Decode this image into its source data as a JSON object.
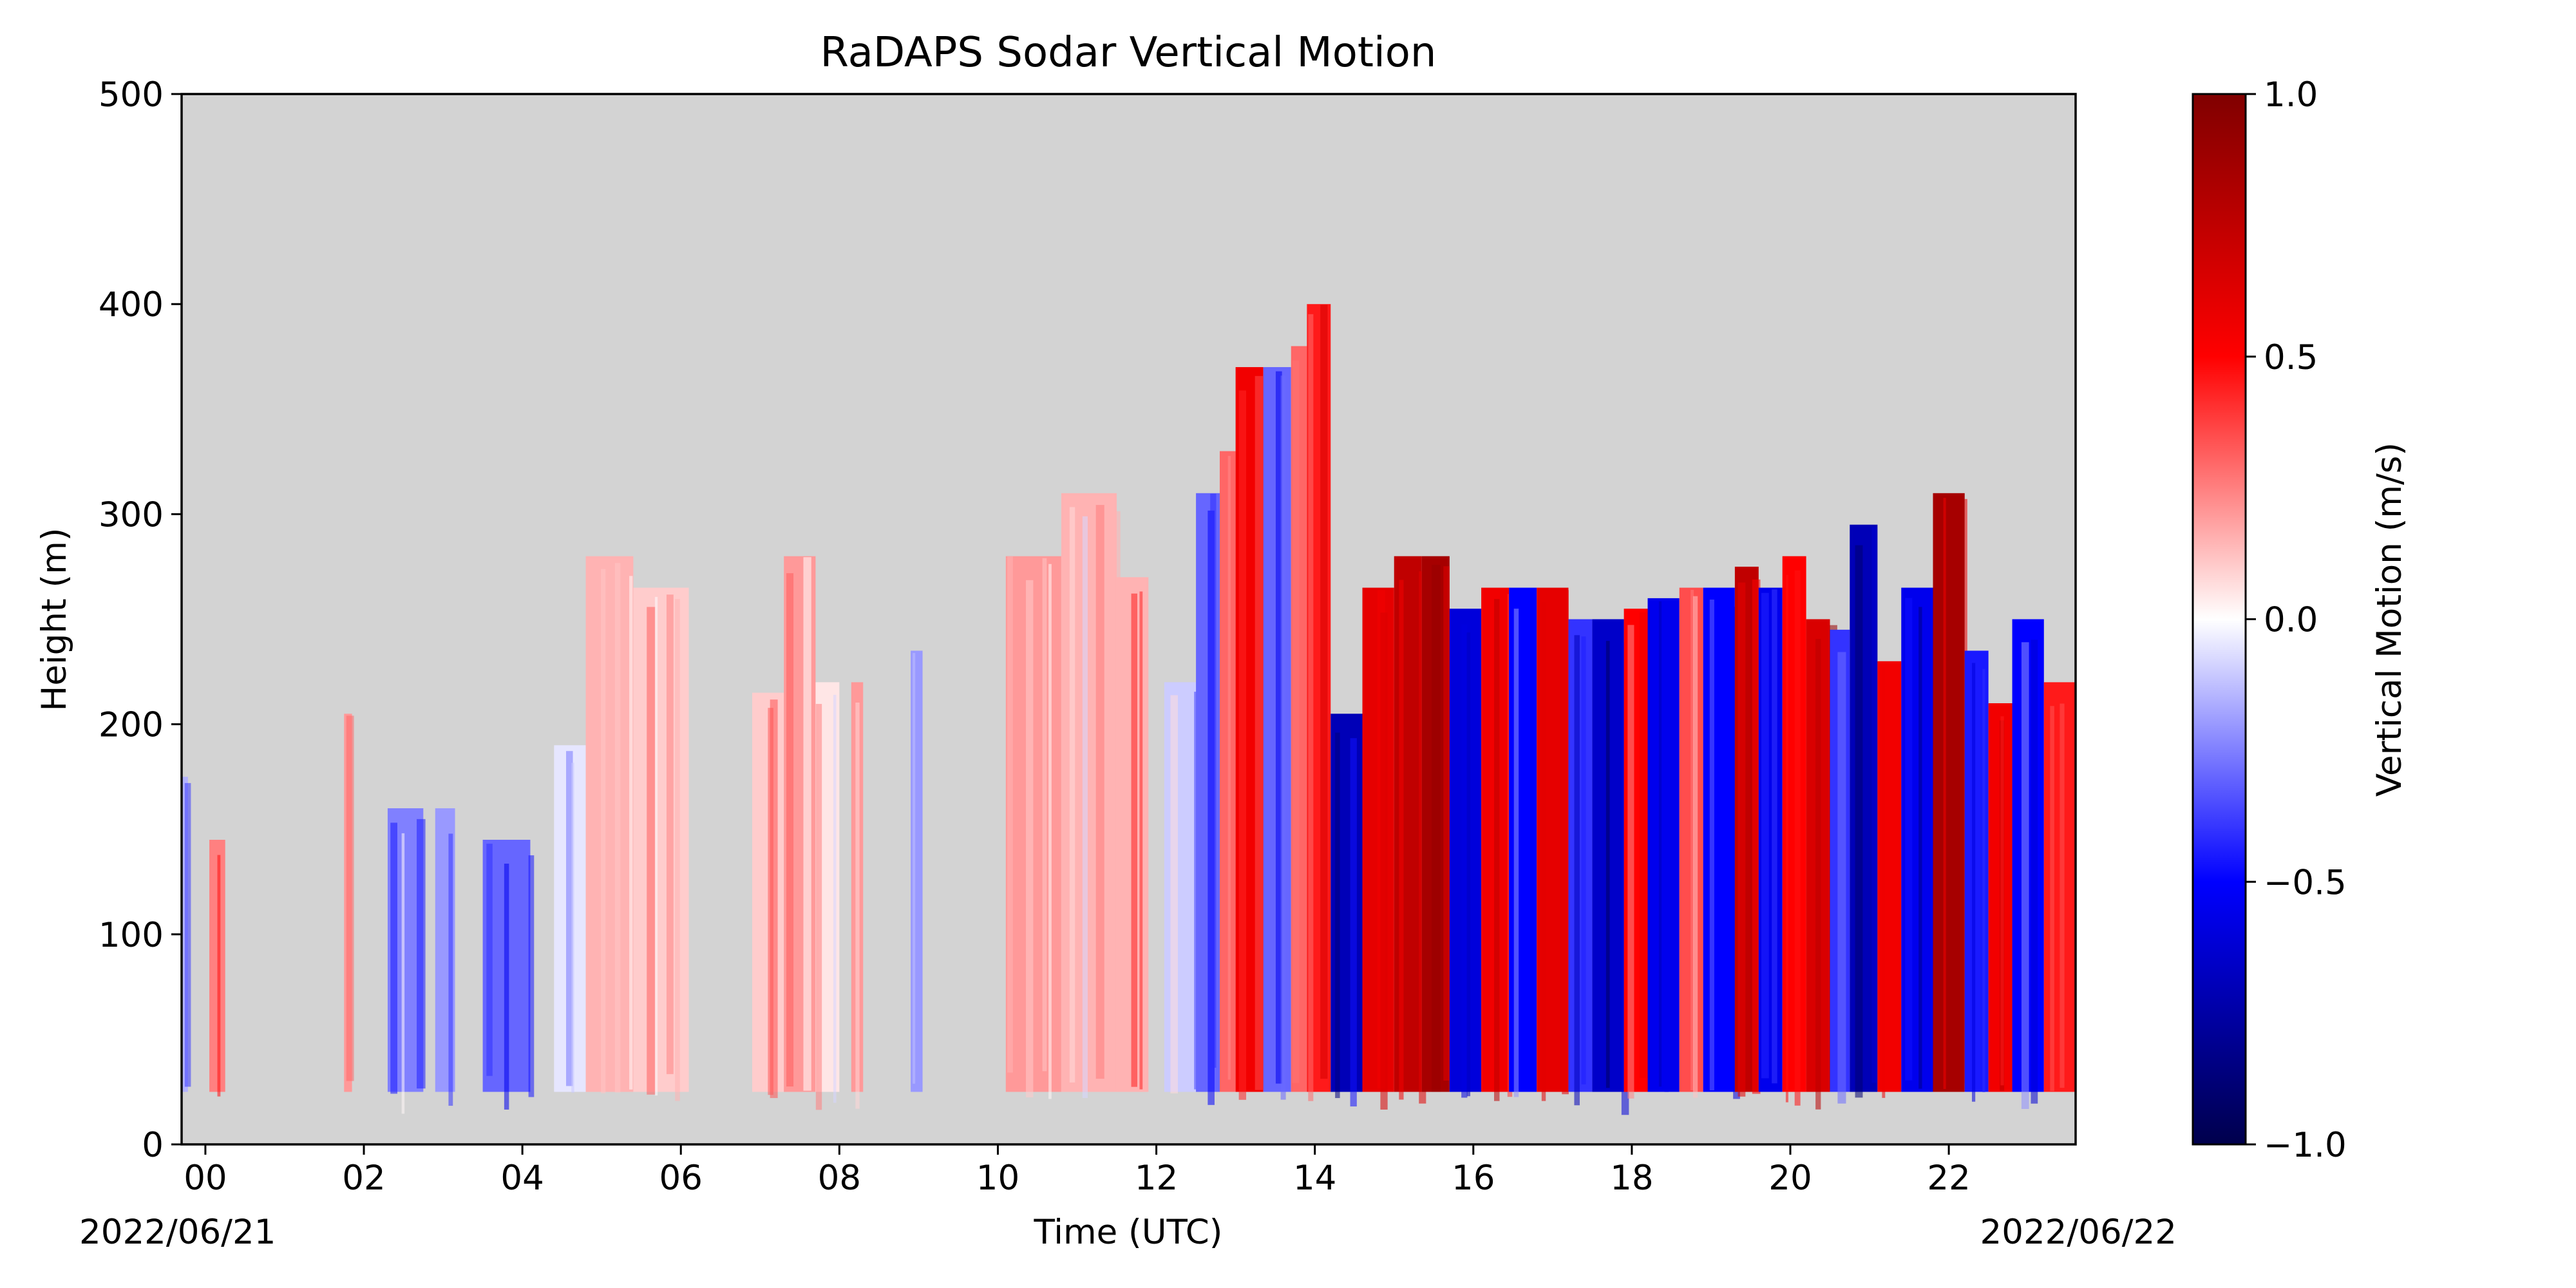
{
  "chart_data": {
    "type": "heatmap",
    "title": "RaDAPS Sodar Vertical Motion",
    "xlabel": "Time (UTC)",
    "ylabel": "Height (m)",
    "start_date_label": "2022/06/21",
    "end_date_label": "2022/06/22",
    "x_range_hours": [
      -0.3,
      23.6
    ],
    "x_ticks": [
      {
        "hour": 0,
        "label": "00"
      },
      {
        "hour": 2,
        "label": "02"
      },
      {
        "hour": 4,
        "label": "04"
      },
      {
        "hour": 6,
        "label": "06"
      },
      {
        "hour": 8,
        "label": "08"
      },
      {
        "hour": 10,
        "label": "10"
      },
      {
        "hour": 12,
        "label": "12"
      },
      {
        "hour": 14,
        "label": "14"
      },
      {
        "hour": 16,
        "label": "16"
      },
      {
        "hour": 18,
        "label": "18"
      },
      {
        "hour": 20,
        "label": "20"
      },
      {
        "hour": 22,
        "label": "22"
      }
    ],
    "ylim": [
      0,
      500
    ],
    "y_ticks": [
      0,
      100,
      200,
      300,
      400,
      500
    ],
    "background_color": "#d3d3d3",
    "colorbar": {
      "label": "Vertical Motion (m/s)",
      "colormap": "seismic",
      "range": [
        -1.0,
        1.0
      ],
      "ticks": [
        "1.0",
        "0.5",
        "0.0",
        "−0.5",
        "−1.0"
      ],
      "colors": {
        "min": "#00004c",
        "mid_low": "#0000ff",
        "zero": "#ffffff",
        "mid_high": "#ff0000",
        "max": "#800000"
      }
    },
    "data_floor_m": 25,
    "columns": [
      {
        "t0": -0.3,
        "t1": -0.22,
        "top": 175,
        "w": -0.15
      },
      {
        "t0": 0.05,
        "t1": 0.25,
        "top": 145,
        "w": 0.25
      },
      {
        "t0": 1.75,
        "t1": 1.85,
        "top": 205,
        "w": 0.2
      },
      {
        "t0": 2.3,
        "t1": 2.75,
        "top": 160,
        "w": -0.25
      },
      {
        "t0": 2.9,
        "t1": 3.15,
        "top": 160,
        "w": -0.2
      },
      {
        "t0": 3.5,
        "t1": 4.1,
        "top": 145,
        "w": -0.3
      },
      {
        "t0": 4.4,
        "t1": 4.8,
        "top": 190,
        "w": -0.05
      },
      {
        "t0": 4.8,
        "t1": 5.4,
        "top": 280,
        "w": 0.15
      },
      {
        "t0": 5.4,
        "t1": 6.1,
        "top": 265,
        "w": 0.1
      },
      {
        "t0": 6.9,
        "t1": 7.3,
        "top": 215,
        "w": 0.1
      },
      {
        "t0": 7.3,
        "t1": 7.7,
        "top": 280,
        "w": 0.2
      },
      {
        "t0": 7.7,
        "t1": 8.0,
        "top": 220,
        "w": 0.05
      },
      {
        "t0": 8.15,
        "t1": 8.3,
        "top": 220,
        "w": 0.2
      },
      {
        "t0": 8.9,
        "t1": 9.05,
        "top": 235,
        "w": -0.2
      },
      {
        "t0": 10.1,
        "t1": 10.8,
        "top": 280,
        "w": 0.2
      },
      {
        "t0": 10.8,
        "t1": 11.5,
        "top": 310,
        "w": 0.15
      },
      {
        "t0": 11.5,
        "t1": 11.9,
        "top": 270,
        "w": 0.15
      },
      {
        "t0": 12.1,
        "t1": 12.5,
        "top": 220,
        "w": -0.1
      },
      {
        "t0": 12.5,
        "t1": 12.8,
        "top": 310,
        "w": -0.3
      },
      {
        "t0": 12.8,
        "t1": 13.0,
        "top": 330,
        "w": 0.3
      },
      {
        "t0": 13.0,
        "t1": 13.35,
        "top": 370,
        "w": 0.55
      },
      {
        "t0": 13.35,
        "t1": 13.7,
        "top": 370,
        "w": -0.3
      },
      {
        "t0": 13.7,
        "t1": 13.9,
        "top": 380,
        "w": 0.3
      },
      {
        "t0": 13.9,
        "t1": 14.2,
        "top": 400,
        "w": 0.45
      },
      {
        "t0": 14.2,
        "t1": 14.6,
        "top": 205,
        "w": -0.7
      },
      {
        "t0": 14.6,
        "t1": 15.0,
        "top": 265,
        "w": 0.6
      },
      {
        "t0": 15.0,
        "t1": 15.35,
        "top": 280,
        "w": 0.75
      },
      {
        "t0": 15.35,
        "t1": 15.7,
        "top": 280,
        "w": 0.85
      },
      {
        "t0": 15.7,
        "t1": 16.1,
        "top": 255,
        "w": -0.6
      },
      {
        "t0": 16.1,
        "t1": 16.45,
        "top": 265,
        "w": 0.55
      },
      {
        "t0": 16.45,
        "t1": 16.8,
        "top": 265,
        "w": -0.5
      },
      {
        "t0": 16.8,
        "t1": 17.2,
        "top": 265,
        "w": 0.6
      },
      {
        "t0": 17.2,
        "t1": 17.5,
        "top": 250,
        "w": -0.4
      },
      {
        "t0": 17.5,
        "t1": 17.9,
        "top": 250,
        "w": -0.65
      },
      {
        "t0": 17.9,
        "t1": 18.2,
        "top": 255,
        "w": 0.5
      },
      {
        "t0": 18.2,
        "t1": 18.6,
        "top": 260,
        "w": -0.55
      },
      {
        "t0": 18.6,
        "t1": 18.9,
        "top": 265,
        "w": 0.35
      },
      {
        "t0": 18.9,
        "t1": 19.3,
        "top": 265,
        "w": -0.5
      },
      {
        "t0": 19.3,
        "t1": 19.6,
        "top": 275,
        "w": 0.75
      },
      {
        "t0": 19.6,
        "t1": 19.9,
        "top": 265,
        "w": -0.55
      },
      {
        "t0": 19.9,
        "t1": 20.2,
        "top": 280,
        "w": 0.5
      },
      {
        "t0": 20.2,
        "t1": 20.5,
        "top": 250,
        "w": 0.65
      },
      {
        "t0": 20.5,
        "t1": 20.75,
        "top": 245,
        "w": -0.4
      },
      {
        "t0": 20.75,
        "t1": 21.1,
        "top": 295,
        "w": -0.7
      },
      {
        "t0": 21.1,
        "t1": 21.4,
        "top": 230,
        "w": 0.55
      },
      {
        "t0": 21.4,
        "t1": 21.8,
        "top": 265,
        "w": -0.55
      },
      {
        "t0": 21.8,
        "t1": 22.2,
        "top": 310,
        "w": 0.85
      },
      {
        "t0": 22.2,
        "t1": 22.5,
        "top": 235,
        "w": -0.45
      },
      {
        "t0": 22.5,
        "t1": 22.8,
        "top": 210,
        "w": 0.55
      },
      {
        "t0": 22.8,
        "t1": 23.2,
        "top": 250,
        "w": -0.5
      },
      {
        "t0": 23.2,
        "t1": 23.6,
        "top": 220,
        "w": 0.45
      }
    ]
  }
}
